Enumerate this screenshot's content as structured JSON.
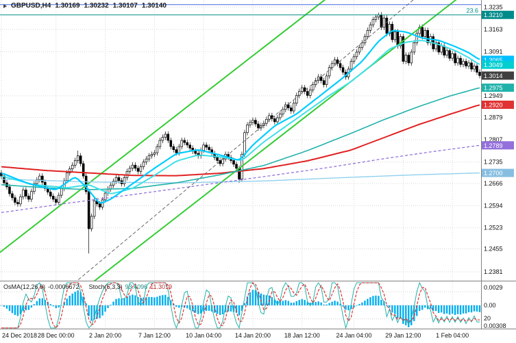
{
  "header": {
    "symbol_period": "GBPUSD,H4",
    "open": "1.30169",
    "high": "1.30232",
    "low": "1.30107",
    "close": "1.30140"
  },
  "indicators_label": {
    "osma_name": "OsMA(12,26,9)",
    "osma_value": "-0.0006672",
    "stoch_name": "Stoch(5,3,3)",
    "stoch_k": "93.4096",
    "stoch_d": "11.3019"
  },
  "chart_data": {
    "type": "candlestick",
    "symbol": "GBPUSD",
    "timeframe": "H4",
    "grid": true,
    "y_axis": {
      "min": 1.235,
      "max": 1.3258,
      "ticks": [
        "1.3235",
        "1.3163",
        "1.3091",
        "1.2949",
        "1.2879",
        "1.2807",
        "1.2735",
        "1.2666",
        "1.2594",
        "1.2523",
        "1.2455",
        "1.2381"
      ]
    },
    "price_labels": [
      {
        "text": "1.3210",
        "value": 1.321,
        "bg": "#008B8B"
      },
      {
        "text": "1.3065",
        "value": 1.3065,
        "bg": "#00BFFF"
      },
      {
        "text": "1.3049",
        "value": 1.3049,
        "bg": "#00CED1"
      },
      {
        "text": "1.2975",
        "value": 1.2975,
        "bg": "#20B2AA"
      },
      {
        "text": "1.2920",
        "value": 1.292,
        "bg": "#E03232"
      },
      {
        "text": "1.2789",
        "value": 1.2789,
        "bg": "#9370DB"
      },
      {
        "text": "1.2700",
        "value": 1.27,
        "bg": "#87BEE0"
      }
    ],
    "current_price": {
      "text": "1.3014",
      "value": 1.3014,
      "bg": "#3F3F3F"
    },
    "x_labels": [
      {
        "label": "24 Dec 2018",
        "i": 0
      },
      {
        "label": "28 Dec 00:00",
        "i": 20
      },
      {
        "label": "2 Jan 20:00",
        "i": 38
      },
      {
        "label": "7 Jan 12:00",
        "i": 56
      },
      {
        "label": "10 Jan 04:00",
        "i": 74
      },
      {
        "label": "14 Jan 20:00",
        "i": 92
      },
      {
        "label": "18 Jan 12:00",
        "i": 110
      },
      {
        "label": "24 Jan 04:00",
        "i": 129
      },
      {
        "label": "29 Jan 12:00",
        "i": 147
      },
      {
        "label": "1 Feb 04:00",
        "i": 165
      }
    ],
    "candles": {
      "start_open": 1.27,
      "default_wick": 0.0009,
      "wick_overrides": [
        {
          "i": 28,
          "high": 1.2772
        },
        {
          "i": 32,
          "low": 1.244
        },
        {
          "i": 87,
          "low": 1.2668
        },
        {
          "i": 138,
          "high": 1.3217
        }
      ],
      "closes": [
        1.269,
        1.2668,
        1.2655,
        1.2633,
        1.262,
        1.2605,
        1.26,
        1.2623,
        1.2645,
        1.2625,
        1.2615,
        1.264,
        1.2665,
        1.2678,
        1.269,
        1.267,
        1.265,
        1.2638,
        1.2625,
        1.2615,
        1.2605,
        1.2628,
        1.265,
        1.2675,
        1.27,
        1.2713,
        1.2725,
        1.274,
        1.2755,
        1.273,
        1.269,
        1.264,
        1.252,
        1.256,
        1.261,
        1.26,
        1.259,
        1.2613,
        1.2635,
        1.2648,
        1.266,
        1.2673,
        1.2685,
        1.2675,
        1.2665,
        1.2685,
        1.2705,
        1.2715,
        1.2725,
        1.2715,
        1.2705,
        1.272,
        1.2735,
        1.2745,
        1.2755,
        1.276,
        1.2765,
        1.2785,
        1.2805,
        1.2815,
        1.2825,
        1.2805,
        1.2785,
        1.2775,
        1.2765,
        1.2785,
        1.2805,
        1.2798,
        1.279,
        1.278,
        1.277,
        1.2763,
        1.2755,
        1.2773,
        1.279,
        1.2783,
        1.2775,
        1.2763,
        1.275,
        1.274,
        1.273,
        1.2745,
        1.276,
        1.275,
        1.274,
        1.2728,
        1.2715,
        1.268,
        1.276,
        1.283,
        1.2855,
        1.2863,
        1.287,
        1.2858,
        1.2845,
        1.2853,
        1.286,
        1.2873,
        1.2885,
        1.2875,
        1.2865,
        1.2878,
        1.289,
        1.2905,
        1.292,
        1.291,
        1.29,
        1.2925,
        1.295,
        1.2963,
        1.2975,
        1.2963,
        1.295,
        1.2968,
        1.2985,
        1.2998,
        1.301,
        1.2998,
        1.2985,
        1.3013,
        1.304,
        1.3053,
        1.3065,
        1.3053,
        1.304,
        1.3025,
        1.301,
        1.3035,
        1.306,
        1.3075,
        1.309,
        1.3105,
        1.312,
        1.314,
        1.316,
        1.3178,
        1.3195,
        1.3203,
        1.321,
        1.317,
        1.32,
        1.315,
        1.318,
        1.313,
        1.3155,
        1.311,
        1.314,
        1.306,
        1.308,
        1.3055,
        1.309,
        1.312,
        1.315,
        1.317,
        1.314,
        1.316,
        1.312,
        1.314,
        1.31,
        1.312,
        1.309,
        1.311,
        1.308,
        1.3095,
        1.307,
        1.3085,
        1.3055,
        1.307,
        1.305,
        1.306,
        1.3045,
        1.3055,
        1.3035,
        1.3045,
        1.3025,
        1.3014
      ]
    },
    "moving_averages": [
      {
        "name": "ma-flat-palecyan",
        "color": "#8FD0EE",
        "width": 1.4,
        "dash": "",
        "anchors": [
          [
            0,
            1.268
          ],
          [
            32,
            1.2671
          ],
          [
            64,
            1.2668
          ],
          [
            96,
            1.2674
          ],
          [
            128,
            1.2686
          ],
          [
            152,
            1.2694
          ],
          [
            175,
            1.27
          ]
        ]
      },
      {
        "name": "ma-slow-purple-dashed",
        "color": "#9370DB",
        "width": 1.3,
        "dash": "4,3",
        "anchors": [
          [
            0,
            1.2572
          ],
          [
            24,
            1.2602
          ],
          [
            48,
            1.263
          ],
          [
            72,
            1.2659
          ],
          [
            96,
            1.2688
          ],
          [
            120,
            1.2718
          ],
          [
            140,
            1.2746
          ],
          [
            158,
            1.2769
          ],
          [
            175,
            1.2789
          ]
        ]
      },
      {
        "name": "ma-slow-red",
        "color": "#E02020",
        "width": 2,
        "dash": "",
        "anchors": [
          [
            0,
            1.272
          ],
          [
            16,
            1.2708
          ],
          [
            32,
            1.27
          ],
          [
            48,
            1.2692
          ],
          [
            64,
            1.2691
          ],
          [
            80,
            1.2699
          ],
          [
            96,
            1.2714
          ],
          [
            112,
            1.2739
          ],
          [
            128,
            1.2774
          ],
          [
            140,
            1.2814
          ],
          [
            152,
            1.2854
          ],
          [
            164,
            1.2889
          ],
          [
            175,
            1.292
          ]
        ]
      },
      {
        "name": "ma-mid-teal",
        "color": "#20B2AA",
        "width": 1.6,
        "dash": "",
        "anchors": [
          [
            0,
            1.2662
          ],
          [
            16,
            1.2652
          ],
          [
            32,
            1.2646
          ],
          [
            48,
            1.265
          ],
          [
            64,
            1.2668
          ],
          [
            80,
            1.2694
          ],
          [
            96,
            1.2724
          ],
          [
            112,
            1.2772
          ],
          [
            128,
            1.2828
          ],
          [
            140,
            1.2872
          ],
          [
            152,
            1.2912
          ],
          [
            164,
            1.2948
          ],
          [
            175,
            1.2975
          ]
        ]
      },
      {
        "name": "ma-mid-cyan",
        "color": "#3FE0E8",
        "width": 2,
        "dash": "",
        "anchors": [
          [
            0,
            1.269
          ],
          [
            12,
            1.2662
          ],
          [
            24,
            1.2652
          ],
          [
            32,
            1.2662
          ],
          [
            40,
            1.2632
          ],
          [
            48,
            1.265
          ],
          [
            56,
            1.2692
          ],
          [
            64,
            1.2738
          ],
          [
            72,
            1.2758
          ],
          [
            80,
            1.2752
          ],
          [
            88,
            1.274
          ],
          [
            96,
            1.28
          ],
          [
            104,
            1.285
          ],
          [
            112,
            1.29
          ],
          [
            120,
            1.295
          ],
          [
            128,
            1.2995
          ],
          [
            136,
            1.3052
          ],
          [
            142,
            1.31
          ],
          [
            148,
            1.3122
          ],
          [
            154,
            1.3128
          ],
          [
            160,
            1.3115
          ],
          [
            166,
            1.3095
          ],
          [
            171,
            1.3072
          ],
          [
            175,
            1.3049
          ]
        ]
      },
      {
        "name": "ma-fast-cyan",
        "color": "#00CCFF",
        "width": 2.2,
        "dash": "",
        "anchors": [
          [
            0,
            1.27
          ],
          [
            10,
            1.2665
          ],
          [
            20,
            1.2645
          ],
          [
            27,
            1.2688
          ],
          [
            31,
            1.2655
          ],
          [
            36,
            1.26
          ],
          [
            40,
            1.2615
          ],
          [
            48,
            1.2665
          ],
          [
            56,
            1.2715
          ],
          [
            64,
            1.2762
          ],
          [
            72,
            1.2775
          ],
          [
            80,
            1.2758
          ],
          [
            87,
            1.274
          ],
          [
            92,
            1.279
          ],
          [
            100,
            1.2852
          ],
          [
            108,
            1.289
          ],
          [
            116,
            1.2945
          ],
          [
            124,
            1.3
          ],
          [
            132,
            1.306
          ],
          [
            138,
            1.3125
          ],
          [
            143,
            1.316
          ],
          [
            148,
            1.3155
          ],
          [
            154,
            1.3135
          ],
          [
            160,
            1.3128
          ],
          [
            166,
            1.3108
          ],
          [
            171,
            1.3088
          ],
          [
            175,
            1.3065
          ]
        ]
      }
    ],
    "trendlines": [
      {
        "name": "channel-upper-green",
        "color": "#33CC33",
        "width": 2,
        "dash": "",
        "p1": [
          -4,
          1.242
        ],
        "p2": [
          120,
          1.327
        ]
      },
      {
        "name": "channel-lower-green",
        "color": "#33CC33",
        "width": 2,
        "dash": "",
        "p1": [
          28,
          1.231
        ],
        "p2": [
          176,
          1.3325
        ]
      },
      {
        "name": "trendline-gray-dashed",
        "color": "#666666",
        "width": 1,
        "dash": "5,3",
        "p1": [
          22,
          1.231
        ],
        "p2": [
          155,
          1.329
        ]
      }
    ],
    "hlines": [
      {
        "name": "resistance-blue",
        "price": 1.3243,
        "color": "#4169E1",
        "width": 1,
        "label": ""
      },
      {
        "name": "fibo-23-6",
        "price": 1.321,
        "color": "#008B8B",
        "width": 1,
        "label": "23.6"
      }
    ],
    "sub_indicator": {
      "types": "OsMA + Stochastic",
      "histogram_color": "#00ADEF",
      "stoch_k_color": "#20B2AA",
      "stoch_d_color": "#E03232",
      "levels": [
        20,
        80
      ],
      "right_labels": [
        {
          "text": "0.0029",
          "y": 12
        },
        {
          "text": "0.00",
          "y": 38
        },
        {
          "text": "20",
          "y": 57
        },
        {
          "text": "0.00308",
          "y": 68
        }
      ]
    }
  }
}
